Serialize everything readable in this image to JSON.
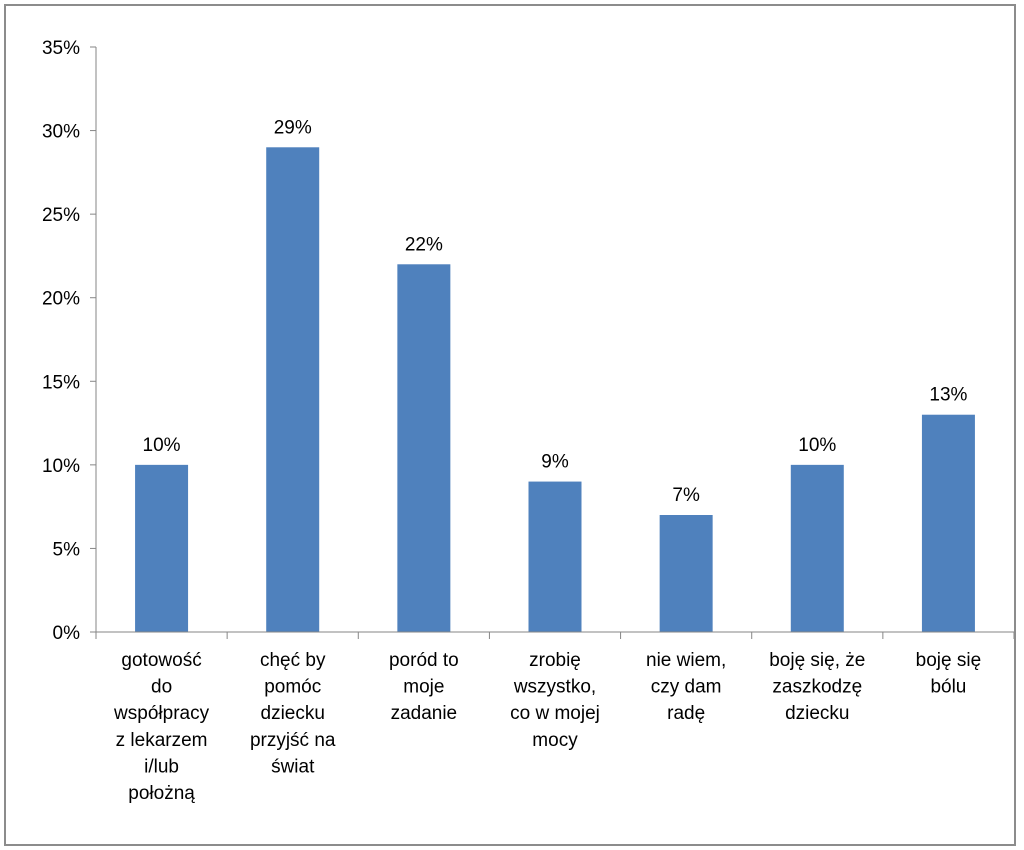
{
  "chart_data": {
    "type": "bar",
    "categories": [
      [
        "gotowość",
        "do",
        "współpracy",
        "z lekarzem",
        "i/lub",
        "położną"
      ],
      [
        "chęć by",
        "pomóc",
        "dziecku",
        "przyjść na",
        "świat"
      ],
      [
        "poród to",
        "moje",
        "zadanie"
      ],
      [
        "zrobię",
        "wszystko,",
        "co w mojej",
        "mocy"
      ],
      [
        "nie wiem,",
        "czy dam",
        "radę"
      ],
      [
        "boję się, że",
        "zaszkodzę",
        "dziecku"
      ],
      [
        "boję się",
        "bólu"
      ]
    ],
    "values": [
      10,
      29,
      22,
      9,
      7,
      10,
      13
    ],
    "data_labels": [
      "10%",
      "29%",
      "22%",
      "9%",
      "7%",
      "10%",
      "13%"
    ],
    "yticks": [
      0,
      5,
      10,
      15,
      20,
      25,
      30,
      35
    ],
    "ytick_labels": [
      "0%",
      "5%",
      "10%",
      "15%",
      "20%",
      "25%",
      "30%",
      "35%"
    ],
    "ylim": [
      0,
      35
    ],
    "title": "",
    "xlabel": "",
    "ylabel": "",
    "grid": false,
    "legend": "none",
    "bar_color": "#4f81bd",
    "axis_color": "#868686"
  }
}
